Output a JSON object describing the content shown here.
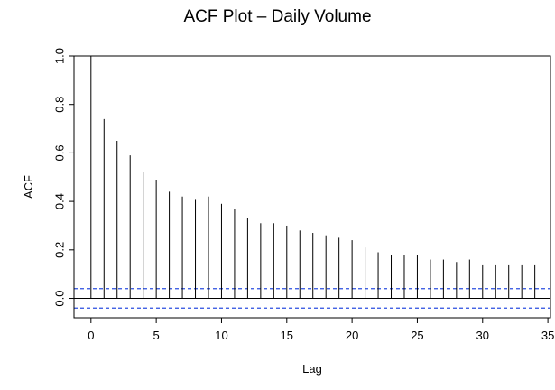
{
  "chart_data": {
    "type": "bar",
    "title": "ACF Plot – Daily Volume",
    "xlabel": "Lag",
    "ylabel": "ACF",
    "xlim": [
      -1.3,
      35.2
    ],
    "ylim": [
      -0.08,
      1.0
    ],
    "x_ticks": [
      0,
      5,
      10,
      15,
      20,
      25,
      30,
      35
    ],
    "y_ticks": [
      0.0,
      0.2,
      0.4,
      0.6,
      0.8,
      1.0
    ],
    "y_tick_labels": [
      "0.0",
      "0.2",
      "0.4",
      "0.6",
      "0.8",
      "1.0"
    ],
    "lags": [
      0,
      1,
      2,
      3,
      4,
      5,
      6,
      7,
      8,
      9,
      10,
      11,
      12,
      13,
      14,
      15,
      16,
      17,
      18,
      19,
      20,
      21,
      22,
      23,
      24,
      25,
      26,
      27,
      28,
      29,
      30,
      31,
      32,
      33,
      34
    ],
    "acf": [
      1.0,
      0.74,
      0.65,
      0.59,
      0.52,
      0.49,
      0.44,
      0.42,
      0.41,
      0.42,
      0.39,
      0.37,
      0.33,
      0.31,
      0.31,
      0.3,
      0.28,
      0.27,
      0.26,
      0.25,
      0.24,
      0.21,
      0.19,
      0.18,
      0.18,
      0.18,
      0.16,
      0.16,
      0.15,
      0.16,
      0.14,
      0.14,
      0.14,
      0.14,
      0.14
    ],
    "confidence_bound": 0.04,
    "colors": {
      "bars": "#000000",
      "zero_line": "#000000",
      "confidence": "#2b4fe0",
      "frame": "#000000"
    },
    "grid": false,
    "legend": "none"
  }
}
